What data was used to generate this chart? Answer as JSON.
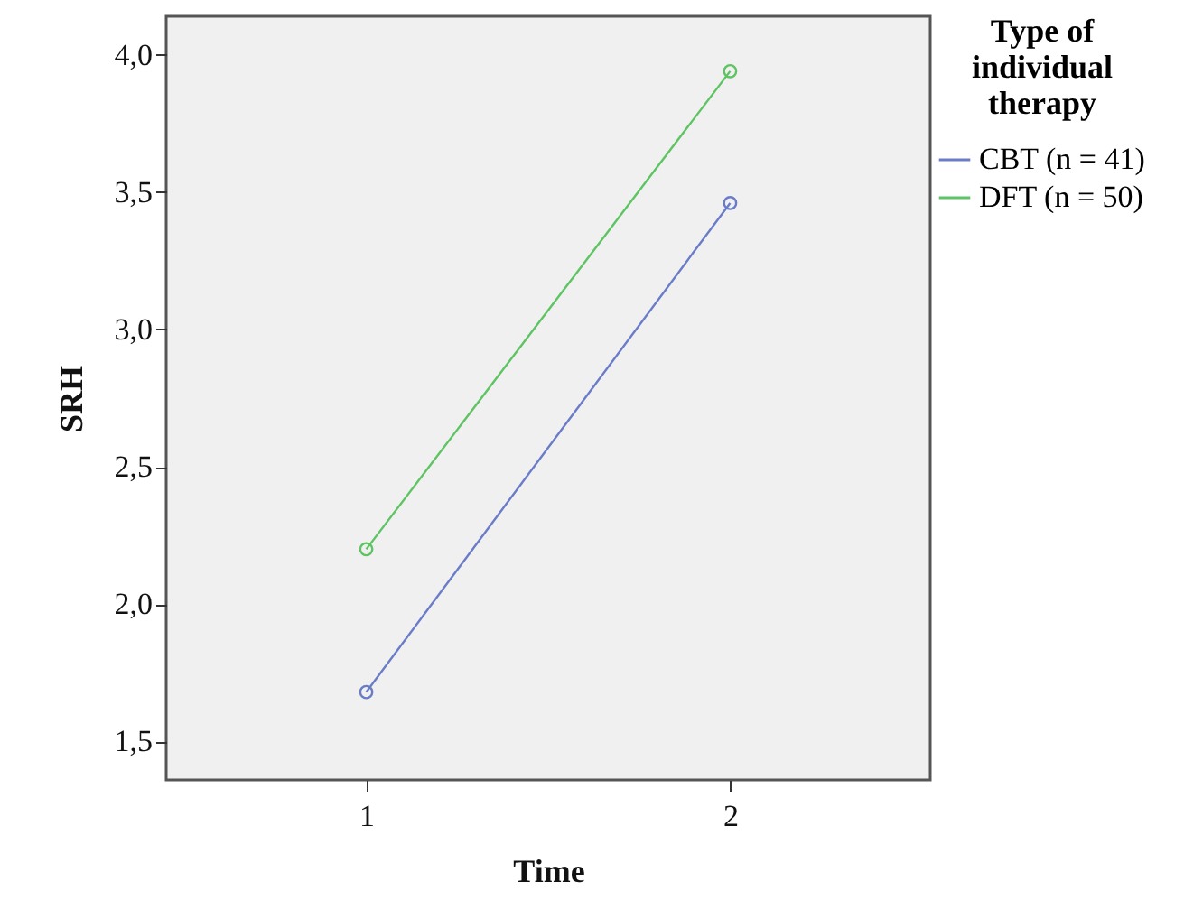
{
  "chart_data": {
    "type": "line",
    "xlabel": "Time",
    "ylabel": "SRH",
    "legend_title": "Type of individual therapy",
    "categories": [
      "1",
      "2"
    ],
    "series": [
      {
        "name": "CBT (n = 41)",
        "color": "#6a7cc8",
        "values": [
          1.68,
          3.46
        ]
      },
      {
        "name": "DFT (n = 50)",
        "color": "#5ec463",
        "values": [
          2.2,
          3.94
        ]
      }
    ],
    "ylim": [
      1.36,
      4.14
    ],
    "yticks": [
      {
        "value": 1.5,
        "label": "1,5"
      },
      {
        "value": 2,
        "label": "2,0"
      },
      {
        "value": 2.5,
        "label": "2,5"
      },
      {
        "value": 3,
        "label": "3,0"
      },
      {
        "value": 3.5,
        "label": "3,5"
      },
      {
        "value": 4,
        "label": "4,0"
      }
    ],
    "legend": "right",
    "marker": "circle",
    "line_style": "solid",
    "grid": false
  }
}
